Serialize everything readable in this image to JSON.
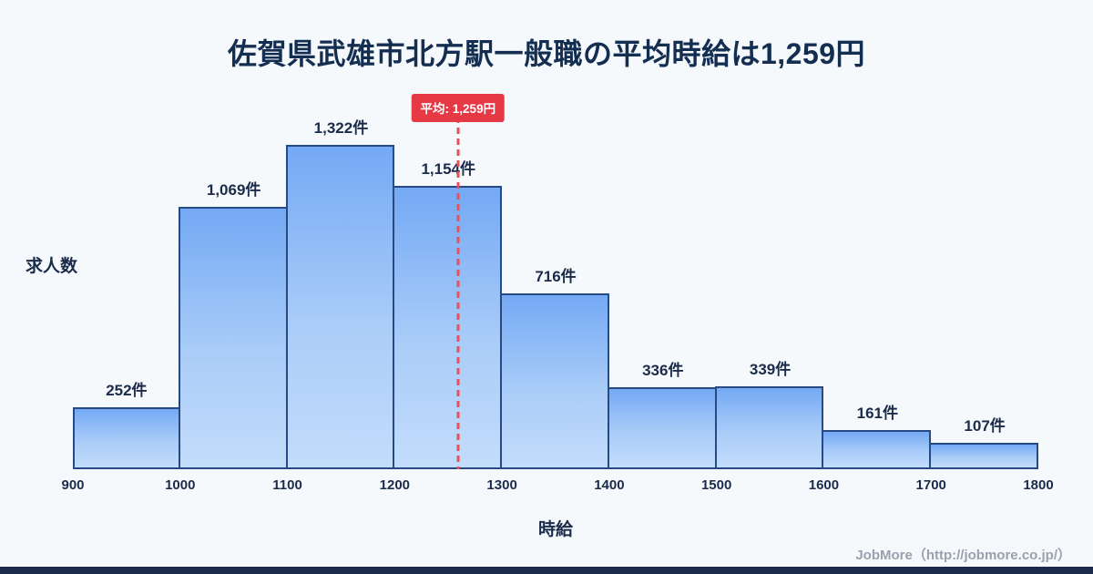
{
  "title": "佐賀県武雄市北方駅一般職の平均時給は1,259円",
  "average": {
    "label": "平均: 1,259円",
    "value": 1259
  },
  "chart_data": {
    "type": "bar",
    "subtype": "histogram",
    "title": "佐賀県武雄市北方駅一般職の平均時給は1,259円",
    "categories": [
      "900-1000",
      "1000-1100",
      "1100-1200",
      "1200-1300",
      "1300-1400",
      "1400-1500",
      "1500-1600",
      "1600-1700",
      "1700-1800"
    ],
    "values": [
      252,
      1069,
      1322,
      1154,
      716,
      336,
      339,
      161,
      107
    ],
    "labels": [
      "252件",
      "1,069件",
      "1,322件",
      "1,154件",
      "716件",
      "336件",
      "339件",
      "161件",
      "107件"
    ],
    "x_ticks": [
      "900",
      "1000",
      "1100",
      "1200",
      "1300",
      "1400",
      "1500",
      "1600",
      "1700",
      "1800"
    ],
    "xlabel": "時給",
    "ylabel": "求人数",
    "xlim": [
      900,
      1800
    ],
    "ylim": [
      0,
      1400
    ],
    "grid": false,
    "legend": false,
    "average_line": {
      "x": 1259,
      "label": "平均: 1,259円"
    }
  },
  "footer": {
    "credit": "JobMore（http://jobmore.co.jp/）"
  },
  "colors": {
    "background": "#f6f9fc",
    "title_text": "#142e52",
    "bar_fill_top": "#74a9f4",
    "bar_fill_bottom": "#c3dcfb",
    "bar_border": "#274a84",
    "average_red": "#e63946",
    "axis_text": "#1b2b4a",
    "footer_text": "#99a1ac",
    "bottom_bar": "#1c2b4d"
  }
}
